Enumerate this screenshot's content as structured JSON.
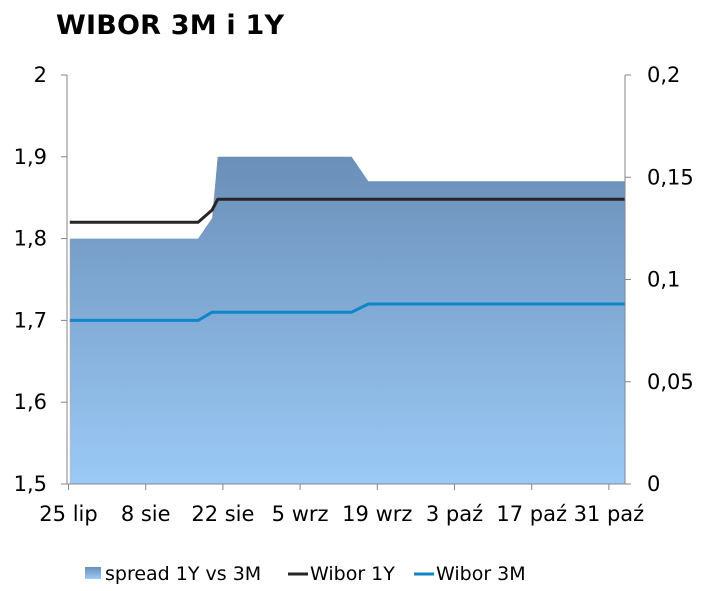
{
  "chart_data": {
    "type": "line",
    "title": "WIBOR 3M i 1Y",
    "x_tick_labels": [
      "25 lip",
      "8 sie",
      "22 sie",
      "5 wrz",
      "19 wrz",
      "3 paź",
      "17 paź",
      "31 paź"
    ],
    "y_left": {
      "min": 1.5,
      "max": 2,
      "ticks": [
        "2",
        "1,9",
        "1,8",
        "1,7",
        "1,6",
        "1,5"
      ]
    },
    "y_right": {
      "min": 0,
      "max": 0.2,
      "ticks": [
        "0,2",
        "0,15",
        "0,1",
        "0,05",
        "0"
      ]
    },
    "x_range_days": [
      0,
      100
    ],
    "series": [
      {
        "name": "spread 1Y vs 3M",
        "axis": "right",
        "kind": "area",
        "color": "#6f96bf",
        "points": [
          [
            0.5,
            0.12
          ],
          [
            23.5,
            0.12
          ],
          [
            26,
            0.13
          ],
          [
            27,
            0.16
          ],
          [
            51,
            0.16
          ],
          [
            54,
            0.148
          ],
          [
            100,
            0.148
          ]
        ]
      },
      {
        "name": "Wibor 1Y",
        "axis": "left",
        "kind": "line",
        "color": "#262626",
        "points": [
          [
            0.5,
            1.82
          ],
          [
            23.5,
            1.82
          ],
          [
            26,
            1.835
          ],
          [
            27,
            1.848
          ],
          [
            100,
            1.848
          ]
        ]
      },
      {
        "name": "Wibor 3M",
        "axis": "left",
        "kind": "line",
        "color": "#0f86c9",
        "points": [
          [
            0.5,
            1.7
          ],
          [
            23.5,
            1.7
          ],
          [
            26,
            1.71
          ],
          [
            51,
            1.71
          ],
          [
            54,
            1.72
          ],
          [
            100,
            1.72
          ]
        ]
      }
    ],
    "legend": [
      "spread 1Y vs 3M",
      "Wibor 1Y",
      "Wibor 3M"
    ],
    "legend_position": "bottom"
  }
}
